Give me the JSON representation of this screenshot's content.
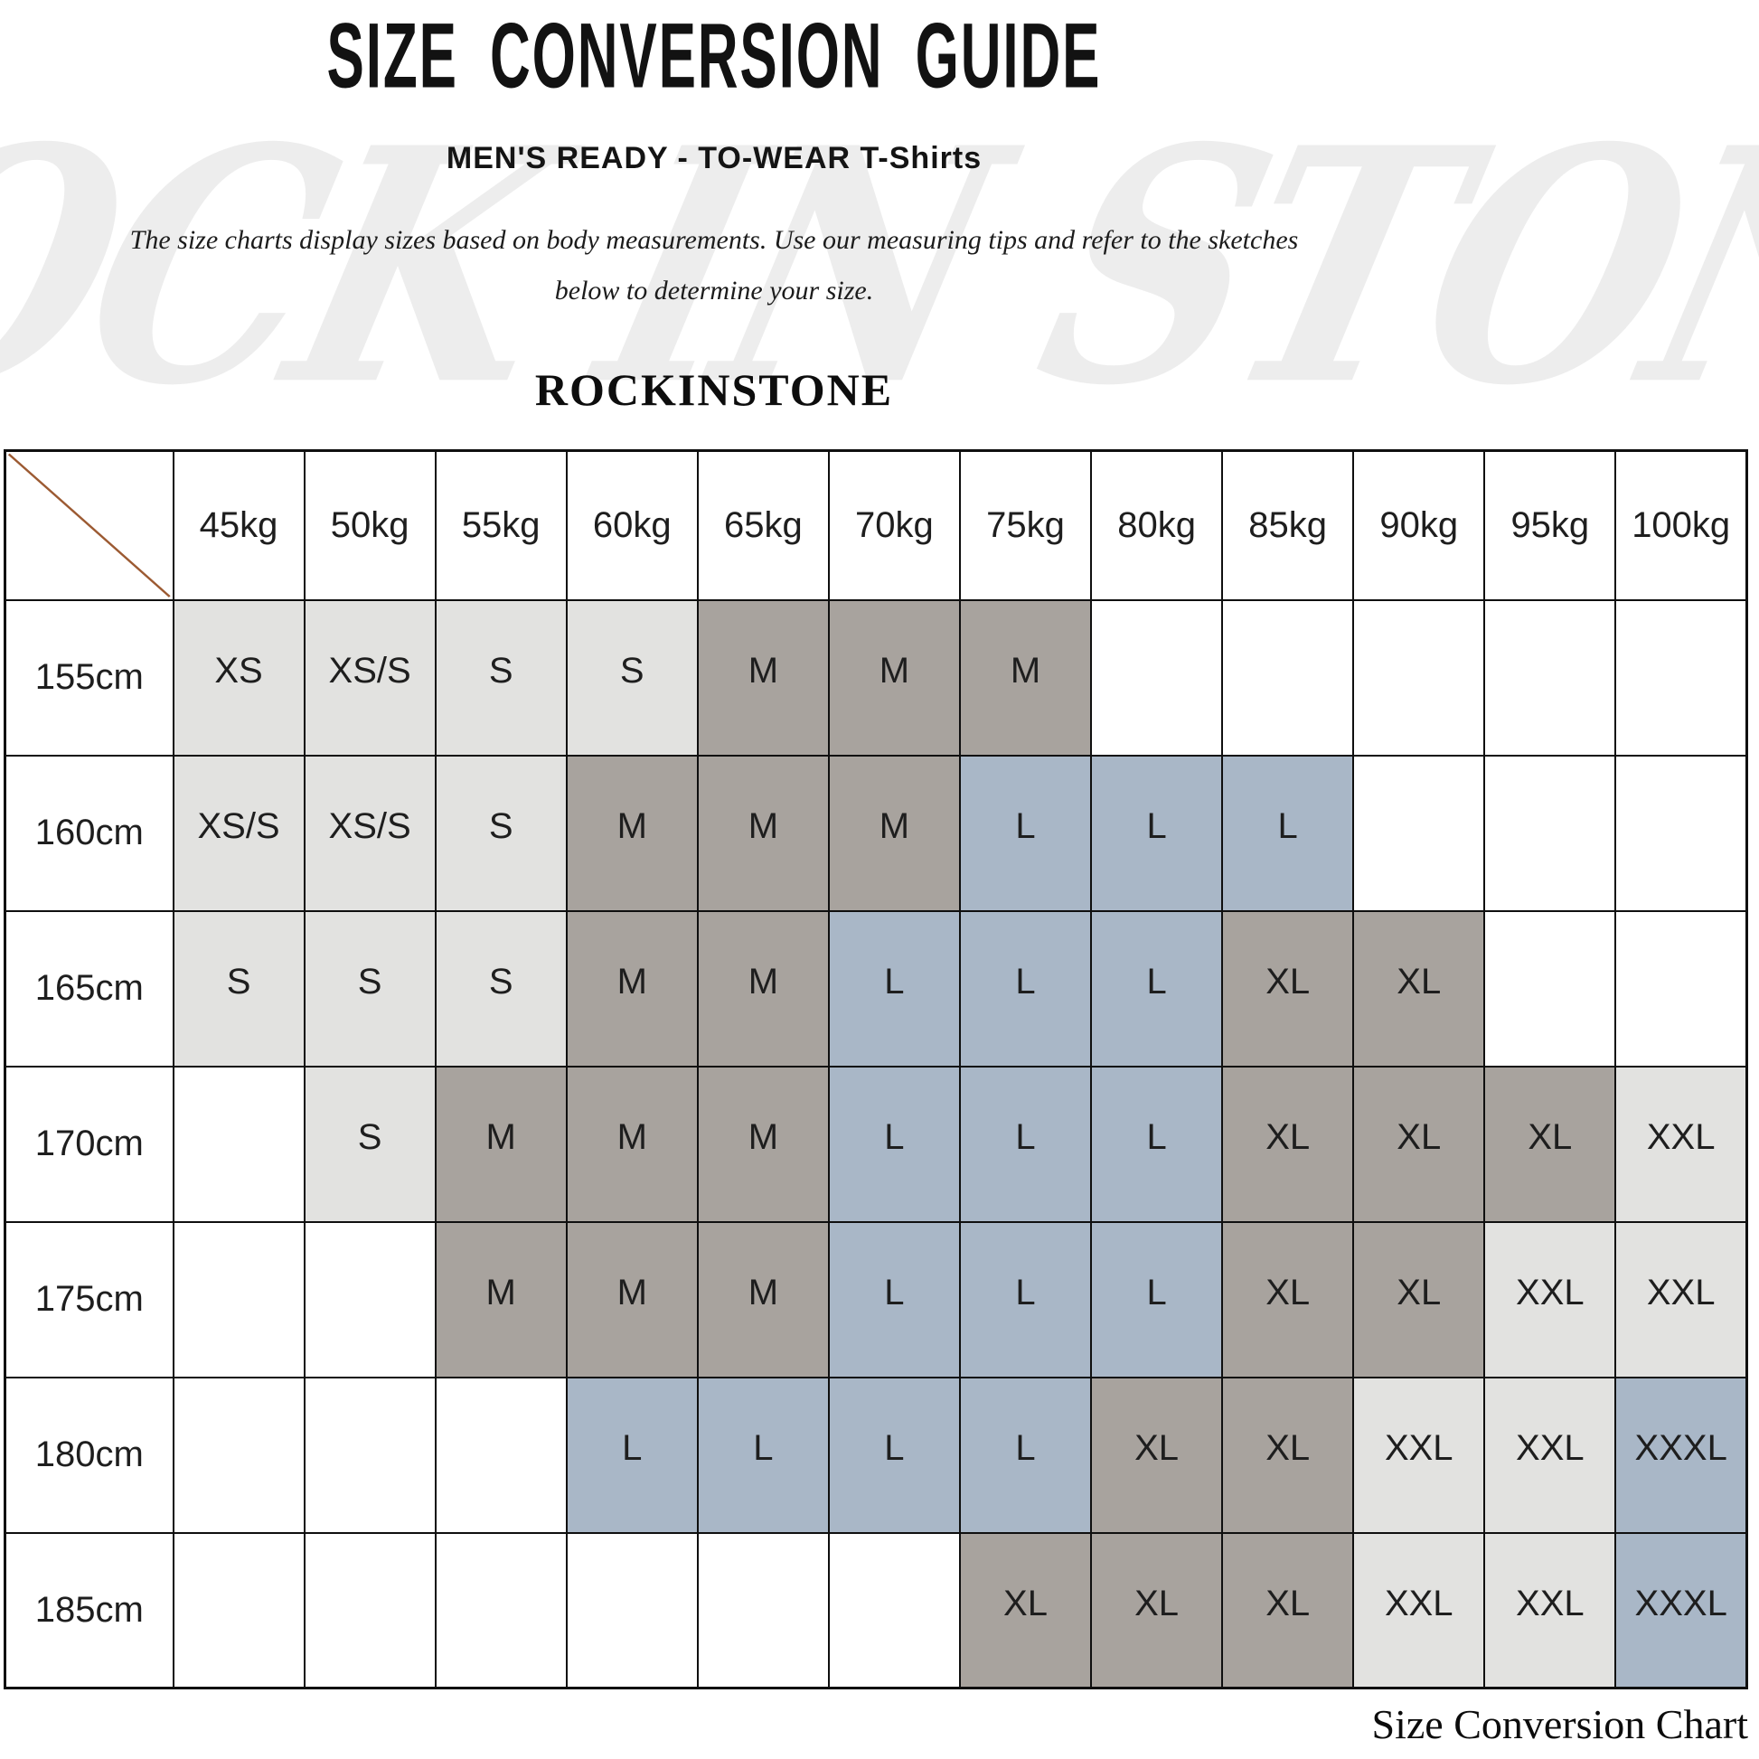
{
  "watermark": "ROCK IN STONE",
  "title": "SIZE CONVERSION GUIDE",
  "subtitle_main": "MEN'S READY - TO-WEAR",
  "subtitle_product": "T-Shirts",
  "description_line1": "The size charts display sizes based on body measurements.  Use our measuring tips and refer to the sketches",
  "description_line2": "below to determine your size.",
  "brand": "ROCKINSTONE",
  "footer_caption": "Size Conversion Chart",
  "colors": {
    "light_cell": "#e2e2e0",
    "mid_cell": "#a8a39e",
    "blue_cell": "#a9b7c7",
    "diagonal_line": "#9c5a32",
    "grid_border": "#0f0f0f"
  },
  "chart_data": {
    "type": "table",
    "title": "SIZE CONVERSION GUIDE",
    "weight_columns": [
      "45kg",
      "50kg",
      "55kg",
      "60kg",
      "65kg",
      "70kg",
      "75kg",
      "80kg",
      "85kg",
      "90kg",
      "95kg",
      "100kg"
    ],
    "height_rows": [
      "155cm",
      "160cm",
      "165cm",
      "170cm",
      "175cm",
      "180cm",
      "185cm"
    ],
    "sizes": [
      [
        "XS",
        "XS/S",
        "S",
        "S",
        "M",
        "M",
        "M",
        "",
        "",
        "",
        "",
        ""
      ],
      [
        "XS/S",
        "XS/S",
        "S",
        "M",
        "M",
        "M",
        "L",
        "L",
        "L",
        "",
        "",
        ""
      ],
      [
        "S",
        "S",
        "S",
        "M",
        "M",
        "L",
        "L",
        "L",
        "XL",
        "XL",
        "",
        ""
      ],
      [
        "",
        "S",
        "M",
        "M",
        "M",
        "L",
        "L",
        "L",
        "XL",
        "XL",
        "XL",
        "XXL"
      ],
      [
        "",
        "",
        "M",
        "M",
        "M",
        "L",
        "L",
        "L",
        "XL",
        "XL",
        "XXL",
        "XXL"
      ],
      [
        "",
        "",
        "",
        "L",
        "L",
        "L",
        "L",
        "XL",
        "XL",
        "XXL",
        "XXL",
        "XXXL"
      ],
      [
        "",
        "",
        "",
        "",
        "",
        "",
        "XL",
        "XL",
        "XL",
        "XXL",
        "XXL",
        "XXXL"
      ]
    ],
    "size_tone_map": {
      "XS": "light",
      "XS/S": "light",
      "S": "light",
      "M": "mid",
      "XL": "mid",
      "L": "blue",
      "XXXL": "blue",
      "XXL": "light"
    }
  }
}
